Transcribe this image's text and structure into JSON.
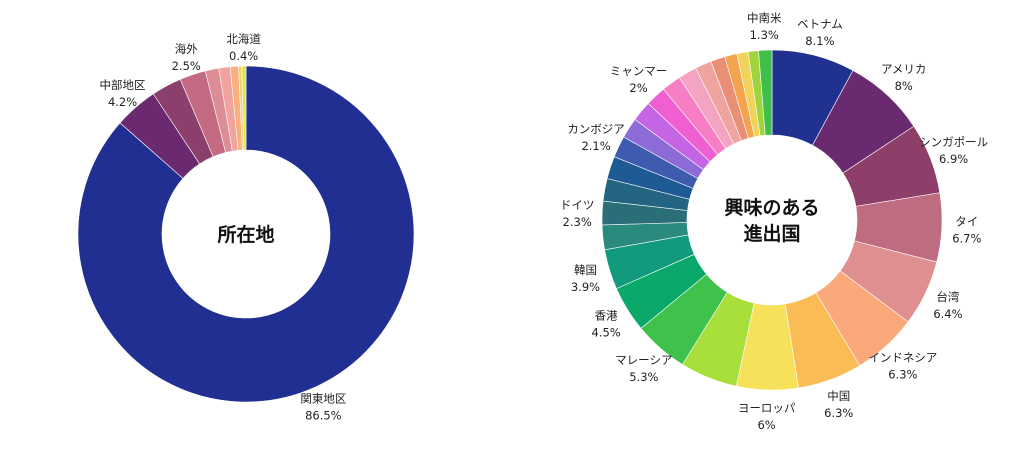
{
  "chart_data": [
    {
      "type": "pie",
      "donut": true,
      "center_lines": [
        "所在地"
      ],
      "slices": [
        {
          "label": "関東地区",
          "value": 86.5,
          "display": "86.5%",
          "color": "#212f93"
        },
        {
          "label": "中部地区",
          "value": 4.2,
          "display": "4.2%",
          "color": "#6b2a70"
        },
        {
          "label": "",
          "value": 2.9,
          "display": "",
          "color": "#8b3f6d"
        },
        {
          "label": "海外",
          "value": 2.5,
          "display": "2.5%",
          "color": "#c46b83"
        },
        {
          "label": "",
          "value": 1.3,
          "display": "",
          "color": "#dd8d95"
        },
        {
          "label": "",
          "value": 1.1,
          "display": "",
          "color": "#f2a3a0"
        },
        {
          "label": "",
          "value": 0.8,
          "display": "",
          "color": "#f9b07d"
        },
        {
          "label": "",
          "value": 0.3,
          "display": "",
          "color": "#f6cf6a"
        },
        {
          "label": "北海道",
          "value": 0.4,
          "display": "0.4%",
          "color": "#d9e84e"
        }
      ]
    },
    {
      "type": "pie",
      "donut": true,
      "center_lines": [
        "興味のある",
        "進出国"
      ],
      "slices": [
        {
          "label": "ベトナム",
          "value": 8.1,
          "display": "8.1%",
          "color": "#21318f"
        },
        {
          "label": "アメリカ",
          "value": 8,
          "display": "8%",
          "color": "#6a2a70"
        },
        {
          "label": "シンガポール",
          "value": 6.9,
          "display": "6.9%",
          "color": "#8d3e69"
        },
        {
          "label": "タイ",
          "value": 6.7,
          "display": "6.7%",
          "color": "#bf6b80"
        },
        {
          "label": "台湾",
          "value": 6.4,
          "display": "6.4%",
          "color": "#df8f8f"
        },
        {
          "label": "インドネシア",
          "value": 6.3,
          "display": "6.3%",
          "color": "#f9a97a"
        },
        {
          "label": "中国",
          "value": 6.3,
          "display": "6.3%",
          "color": "#fbbb55"
        },
        {
          "label": "ヨーロッパ",
          "value": 6,
          "display": "6%",
          "color": "#f8e15a"
        },
        {
          "label": "",
          "value": 5.6,
          "display": "",
          "color": "#a8df3a"
        },
        {
          "label": "マレーシア",
          "value": 5.3,
          "display": "5.3%",
          "color": "#3fc24c"
        },
        {
          "label": "香港",
          "value": 4.5,
          "display": "4.5%",
          "color": "#0aa96a"
        },
        {
          "label": "韓国",
          "value": 3.9,
          "display": "3.9%",
          "color": "#129a7c"
        },
        {
          "label": "",
          "value": 2.4,
          "display": "",
          "color": "#2a8a7e"
        },
        {
          "label": "ドイツ",
          "value": 2.3,
          "display": "2.3%",
          "color": "#2a6f78"
        },
        {
          "label": "",
          "value": 2.2,
          "display": "",
          "color": "#236482"
        },
        {
          "label": "",
          "value": 2.2,
          "display": "",
          "color": "#1e5a93"
        },
        {
          "label": "カンボジア",
          "value": 2.1,
          "display": "2.1%",
          "color": "#3f5bb0"
        },
        {
          "label": "",
          "value": 2.0,
          "display": "",
          "color": "#8d6bd6"
        },
        {
          "label": "",
          "value": 2.0,
          "display": "",
          "color": "#c565e6"
        },
        {
          "label": "ミャンマー",
          "value": 2,
          "display": "2%",
          "color": "#ef5fd2"
        },
        {
          "label": "",
          "value": 1.9,
          "display": "",
          "color": "#f77dc4"
        },
        {
          "label": "",
          "value": 1.8,
          "display": "",
          "color": "#f5a3c2"
        },
        {
          "label": "",
          "value": 1.6,
          "display": "",
          "color": "#f0a4a0"
        },
        {
          "label": "",
          "value": 1.4,
          "display": "",
          "color": "#e98f75"
        },
        {
          "label": "",
          "value": 1.2,
          "display": "",
          "color": "#f2a44e"
        },
        {
          "label": "",
          "value": 1.1,
          "display": "",
          "color": "#f0d35a"
        },
        {
          "label": "",
          "value": 1.0,
          "display": "",
          "color": "#9fd43c"
        },
        {
          "label": "中南米",
          "value": 1.3,
          "display": "1.3%",
          "color": "#3fbf4a"
        }
      ]
    }
  ]
}
